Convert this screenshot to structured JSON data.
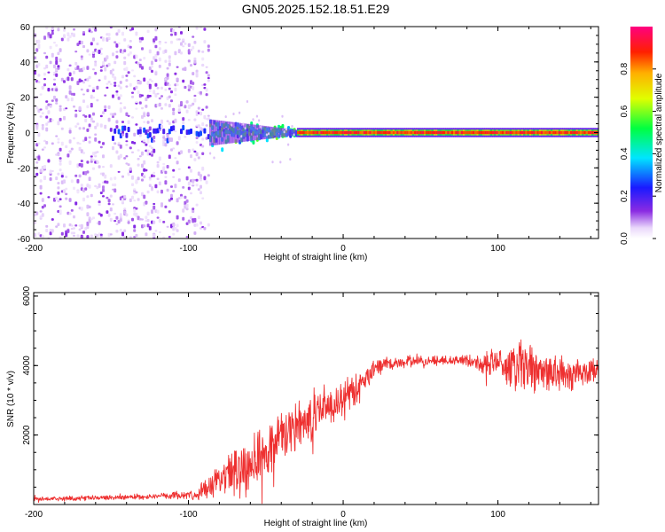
{
  "title": "GN05.2025.152.18.51.E29",
  "colors": {
    "axis": "#000000",
    "snr_line": "#ee3030",
    "background": "#ffffff"
  },
  "chart_data": [
    {
      "type": "heatmap",
      "xlabel": "Height of straight line (km)",
      "ylabel": "Frequency (Hz)",
      "xlim": [
        -200,
        165
      ],
      "ylim": [
        -60,
        60
      ],
      "xticks": [
        "-200",
        "-100",
        "0",
        "100"
      ],
      "xtick_values": [
        -200,
        -100,
        0,
        100
      ],
      "yticks": [
        "60",
        "40",
        "20",
        "0",
        "-20",
        "-40",
        "-60"
      ],
      "ytick_values": [
        60,
        40,
        20,
        0,
        -20,
        -40,
        -60
      ],
      "colorbar": {
        "label": "Normalized spectral amplitude",
        "range": [
          0,
          1
        ],
        "ticks": [
          "0.0",
          "0.2",
          "0.4",
          "0.6",
          "0.8"
        ],
        "tick_values": [
          0,
          0.2,
          0.4,
          0.6,
          0.8
        ],
        "colormap": "rainbow (white-violet-blue-cyan-green-yellow-red-magenta)"
      },
      "features": [
        {
          "x_range": [
            -200,
            -87
          ],
          "freq_range": [
            -60,
            60
          ],
          "amplitude": "low (0.0-0.15) scattered noise"
        },
        {
          "x_range": [
            -87,
            -30
          ],
          "freq_range": [
            -7,
            7
          ],
          "amplitude": "0.3-0.6 broadening signal near 0 Hz"
        },
        {
          "x_range": [
            -30,
            165
          ],
          "freq_range": [
            -1,
            1
          ],
          "amplitude": "0.8-1.0 narrow line at 0 Hz"
        }
      ]
    },
    {
      "type": "line",
      "xlabel": "Height of straight line (km)",
      "ylabel": "SNR (10 * v/v)",
      "xlim": [
        -200,
        165
      ],
      "ylim": [
        0,
        6100
      ],
      "xticks": [
        "-200",
        "-100",
        "0",
        "100"
      ],
      "xtick_values": [
        -200,
        -100,
        0,
        100
      ],
      "yticks": [
        "6000",
        "4000",
        "2000"
      ],
      "ytick_values": [
        6000,
        4000,
        2000
      ],
      "series": [
        {
          "x": [
            -200,
            -150,
            -110,
            -95,
            -85,
            -75,
            -65,
            -55,
            -45,
            -35,
            -25,
            -15,
            -5,
            0,
            10,
            20,
            30,
            40,
            60,
            80,
            90,
            100,
            110,
            115,
            120,
            125,
            135,
            145,
            155,
            165
          ],
          "y": [
            150,
            200,
            250,
            300,
            500,
            800,
            1100,
            1400,
            1700,
            2100,
            2400,
            2750,
            2950,
            3050,
            3400,
            3900,
            4050,
            4100,
            4150,
            4150,
            4050,
            4100,
            4000,
            3900,
            3850,
            3900,
            3800,
            3750,
            3800,
            3850
          ],
          "amp": [
            80,
            80,
            120,
            180,
            450,
            700,
            1000,
            1100,
            1000,
            950,
            850,
            700,
            650,
            650,
            450,
            300,
            200,
            200,
            150,
            200,
            350,
            550,
            900,
            1100,
            1000,
            800,
            650,
            550,
            500,
            400
          ]
        }
      ]
    }
  ]
}
